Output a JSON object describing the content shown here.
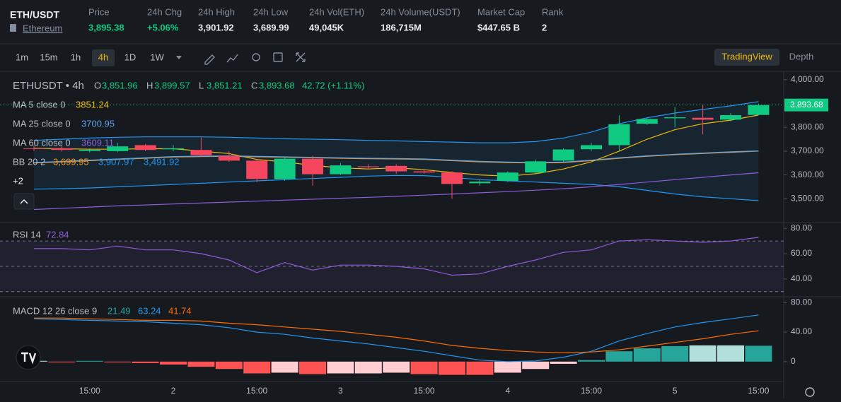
{
  "header": {
    "symbol": "ETH/USDT",
    "name": "Ethereum",
    "stats": [
      {
        "label": "Price",
        "value": "3,895.38",
        "color": "#0ecb81"
      },
      {
        "label": "24h Chg",
        "value": "+5.06%",
        "color": "#0ecb81"
      },
      {
        "label": "24h High",
        "value": "3,901.92",
        "color": "#eaecef"
      },
      {
        "label": "24h Low",
        "value": "3,689.99",
        "color": "#eaecef"
      },
      {
        "label": "24h Vol(ETH)",
        "value": "49,045K",
        "color": "#eaecef"
      },
      {
        "label": "24h Volume(USDT)",
        "value": "186,715M",
        "color": "#eaecef"
      },
      {
        "label": "Market Cap",
        "value": "$447.65 B",
        "color": "#eaecef"
      },
      {
        "label": "Rank",
        "value": "2",
        "color": "#eaecef"
      }
    ]
  },
  "toolbar": {
    "intervals": [
      {
        "label": "1m",
        "active": false
      },
      {
        "label": "15m",
        "active": false
      },
      {
        "label": "1h",
        "active": false
      },
      {
        "label": "4h",
        "active": true
      },
      {
        "label": "1D",
        "active": false
      },
      {
        "label": "1W",
        "active": false
      }
    ],
    "views": [
      {
        "label": "TradingView",
        "active": true
      },
      {
        "label": "Depth",
        "active": false
      }
    ]
  },
  "chart_data": [
    {
      "type": "candlestick",
      "title": "ETHUSDT • 4h",
      "ohlc_legend": [
        {
          "label": "O",
          "value": "3,851.96"
        },
        {
          "label": "H",
          "value": "3,899.57"
        },
        {
          "label": "L",
          "value": "3,851.21"
        },
        {
          "label": "C",
          "value": "3,893.68"
        }
      ],
      "change": "42.72 (+1.11%)",
      "hidden_indicators": "+2",
      "categories": [
        null,
        null,
        "15:00",
        null,
        null,
        "2",
        null,
        null,
        "15:00",
        null,
        null,
        "3",
        null,
        null,
        "15:00",
        null,
        null,
        "4",
        null,
        null,
        "15:00",
        null,
        null,
        "5",
        null,
        null,
        "15:00"
      ],
      "open": [
        3712,
        3712,
        3700,
        3700,
        3725,
        3708,
        3705,
        3680,
        3660,
        3583,
        3668,
        3603,
        3636,
        3638,
        3615,
        3610,
        3565,
        3575,
        3610,
        3660,
        3708,
        3725,
        3815,
        3838,
        3840,
        3832,
        3851.96
      ],
      "high": [
        3725,
        3720,
        3712,
        3735,
        3730,
        3725,
        3757,
        3700,
        3665,
        3675,
        3680,
        3650,
        3645,
        3645,
        3625,
        3615,
        3580,
        3615,
        3665,
        3712,
        3735,
        3850,
        3840,
        3885,
        3895,
        3860,
        3899.57
      ],
      "low": [
        3700,
        3698,
        3695,
        3695,
        3700,
        3700,
        3675,
        3655,
        3570,
        3575,
        3555,
        3600,
        3625,
        3605,
        3605,
        3500,
        3555,
        3570,
        3605,
        3655,
        3700,
        3700,
        3810,
        3800,
        3770,
        3825,
        3851.21
      ],
      "close": [
        3710,
        3705,
        3705,
        3720,
        3705,
        3712,
        3683,
        3660,
        3583,
        3668,
        3603,
        3640,
        3632,
        3615,
        3610,
        3562,
        3572,
        3610,
        3657,
        3707,
        3725,
        3813,
        3835,
        3842,
        3832,
        3851,
        3893.68
      ],
      "up_color": "#0ecb81",
      "down_color": "#f6465d",
      "series": [
        {
          "name": "MA 5 close 0",
          "legend_value": "3851.24",
          "color": "#f0b90b",
          "values": [
            3712,
            3710,
            3708,
            3708,
            3710,
            3710,
            3700,
            3690,
            3665,
            3655,
            3640,
            3630,
            3625,
            3630,
            3622,
            3610,
            3600,
            3595,
            3605,
            3625,
            3655,
            3700,
            3750,
            3790,
            3815,
            3830,
            3851.24
          ]
        },
        {
          "name": "MA 25 close 0",
          "legend_value": "3700.95",
          "color": "#5ba4f0",
          "values": [
            3652,
            3657,
            3662,
            3667,
            3672,
            3677,
            3679,
            3680,
            3678,
            3676,
            3674,
            3672,
            3670,
            3669,
            3667,
            3662,
            3657,
            3654,
            3652,
            3654,
            3662,
            3672,
            3680,
            3687,
            3692,
            3697,
            3700.95
          ]
        },
        {
          "name": "MA 60 close 0",
          "legend_value": "3609.11",
          "color": "#8e5cd9",
          "values": [
            3455,
            3460,
            3465,
            3470,
            3474,
            3478,
            3482,
            3486,
            3490,
            3494,
            3498,
            3502,
            3506,
            3510,
            3515,
            3520,
            3525,
            3530,
            3536,
            3542,
            3550,
            3560,
            3570,
            3580,
            3590,
            3600,
            3609.11
          ]
        }
      ],
      "bollinger": {
        "name": "BB 20 2",
        "legend_values": [
          "3,699.95",
          "3,907.97",
          "3,491.92"
        ],
        "colors": [
          "#f7931a",
          "#2196f3",
          "#2196f3"
        ],
        "fill": "rgba(33,150,243,0.09)",
        "middle": [
          3650,
          3655,
          3660,
          3665,
          3670,
          3675,
          3677,
          3678,
          3676,
          3674,
          3672,
          3670,
          3668,
          3667,
          3665,
          3660,
          3655,
          3652,
          3650,
          3652,
          3660,
          3670,
          3678,
          3685,
          3690,
          3695,
          3699.95
        ],
        "upper": [
          3745,
          3750,
          3755,
          3758,
          3760,
          3760,
          3760,
          3758,
          3755,
          3752,
          3750,
          3748,
          3745,
          3743,
          3740,
          3738,
          3735,
          3735,
          3740,
          3755,
          3780,
          3815,
          3840,
          3860,
          3875,
          3890,
          3907.97
        ],
        "lower": [
          3540,
          3542,
          3545,
          3550,
          3555,
          3560,
          3565,
          3570,
          3575,
          3580,
          3585,
          3590,
          3595,
          3598,
          3597,
          3590,
          3580,
          3575,
          3570,
          3565,
          3560,
          3550,
          3535,
          3520,
          3508,
          3500,
          3491.92
        ]
      },
      "last_price": {
        "value": 3893.68,
        "label": "3,893.68"
      },
      "ylim": [
        3400,
        4032
      ],
      "yticks": [
        {
          "value": 4000,
          "label": "4,000.00"
        },
        {
          "value": 3800,
          "label": "3,800.00"
        },
        {
          "value": 3700,
          "label": "3,700.00"
        },
        {
          "value": 3600,
          "label": "3,600.00"
        },
        {
          "value": 3500,
          "label": "3,500.00"
        }
      ]
    },
    {
      "type": "line",
      "title": "RSI 14",
      "legend_value": "72.84",
      "color": "#8e5cd9",
      "band_fill": "rgba(126,87,194,0.10)",
      "values": [
        64,
        64,
        63,
        66,
        63,
        63,
        60,
        55,
        45,
        53,
        47,
        51,
        51,
        50,
        48,
        43,
        44,
        50,
        55,
        61,
        63,
        70,
        71,
        70,
        69,
        70,
        72.84
      ],
      "levels": [
        70,
        50,
        30
      ],
      "ylim": [
        26,
        84
      ],
      "yticks": [
        {
          "value": 80,
          "label": "80.00"
        },
        {
          "value": 60,
          "label": "60.00"
        },
        {
          "value": 40,
          "label": "40.00"
        }
      ]
    },
    {
      "type": "macd",
      "title": "MACD 12 26 close 9",
      "histogram": {
        "legend_value": "21.49",
        "color": "#26a69a",
        "values": [
          1,
          -1,
          1,
          -1,
          -2,
          -4,
          -7,
          -10,
          -16,
          -15,
          -17,
          -16,
          -16,
          -15,
          -17,
          -18,
          -18,
          -15,
          -10,
          -3,
          2,
          14,
          18,
          21,
          22,
          22,
          21.49
        ],
        "colors": [
          "#b2dfdb",
          "#ff5252",
          "#26a69a",
          "#ff5252",
          "#ff5252",
          "#ff5252",
          "#ff5252",
          "#ff5252",
          "#ff5252",
          "#ffcdd2",
          "#ff5252",
          "#ffcdd2",
          "#ffcdd2",
          "#ffcdd2",
          "#ff5252",
          "#ff5252",
          "#ff5252",
          "#ffcdd2",
          "#ffcdd2",
          "#ffcdd2",
          "#26a69a",
          "#26a69a",
          "#26a69a",
          "#26a69a",
          "#b2dfdb",
          "#b2dfdb",
          "#26a69a"
        ]
      },
      "series": [
        {
          "legend_value": "63.24",
          "color": "#2196f3",
          "values": [
            58,
            57,
            56,
            55,
            54,
            52,
            50,
            46,
            40,
            37,
            32,
            28,
            24,
            19,
            14,
            8,
            2,
            0,
            1,
            6,
            14,
            28,
            38,
            47,
            53,
            58,
            63.24
          ]
        },
        {
          "legend_value": "41.74",
          "color": "#ff6d00",
          "values": [
            59,
            59,
            58,
            57,
            56,
            56,
            55,
            52,
            50,
            47,
            44,
            41,
            37,
            33,
            28,
            22,
            18,
            15,
            13,
            12,
            13,
            16,
            21,
            26,
            31,
            37,
            41.74
          ]
        }
      ],
      "ylim": [
        -27,
        87
      ],
      "yticks": [
        {
          "value": 80,
          "label": "80.00"
        },
        {
          "value": 40,
          "label": "40.00"
        },
        0
      ]
    }
  ]
}
